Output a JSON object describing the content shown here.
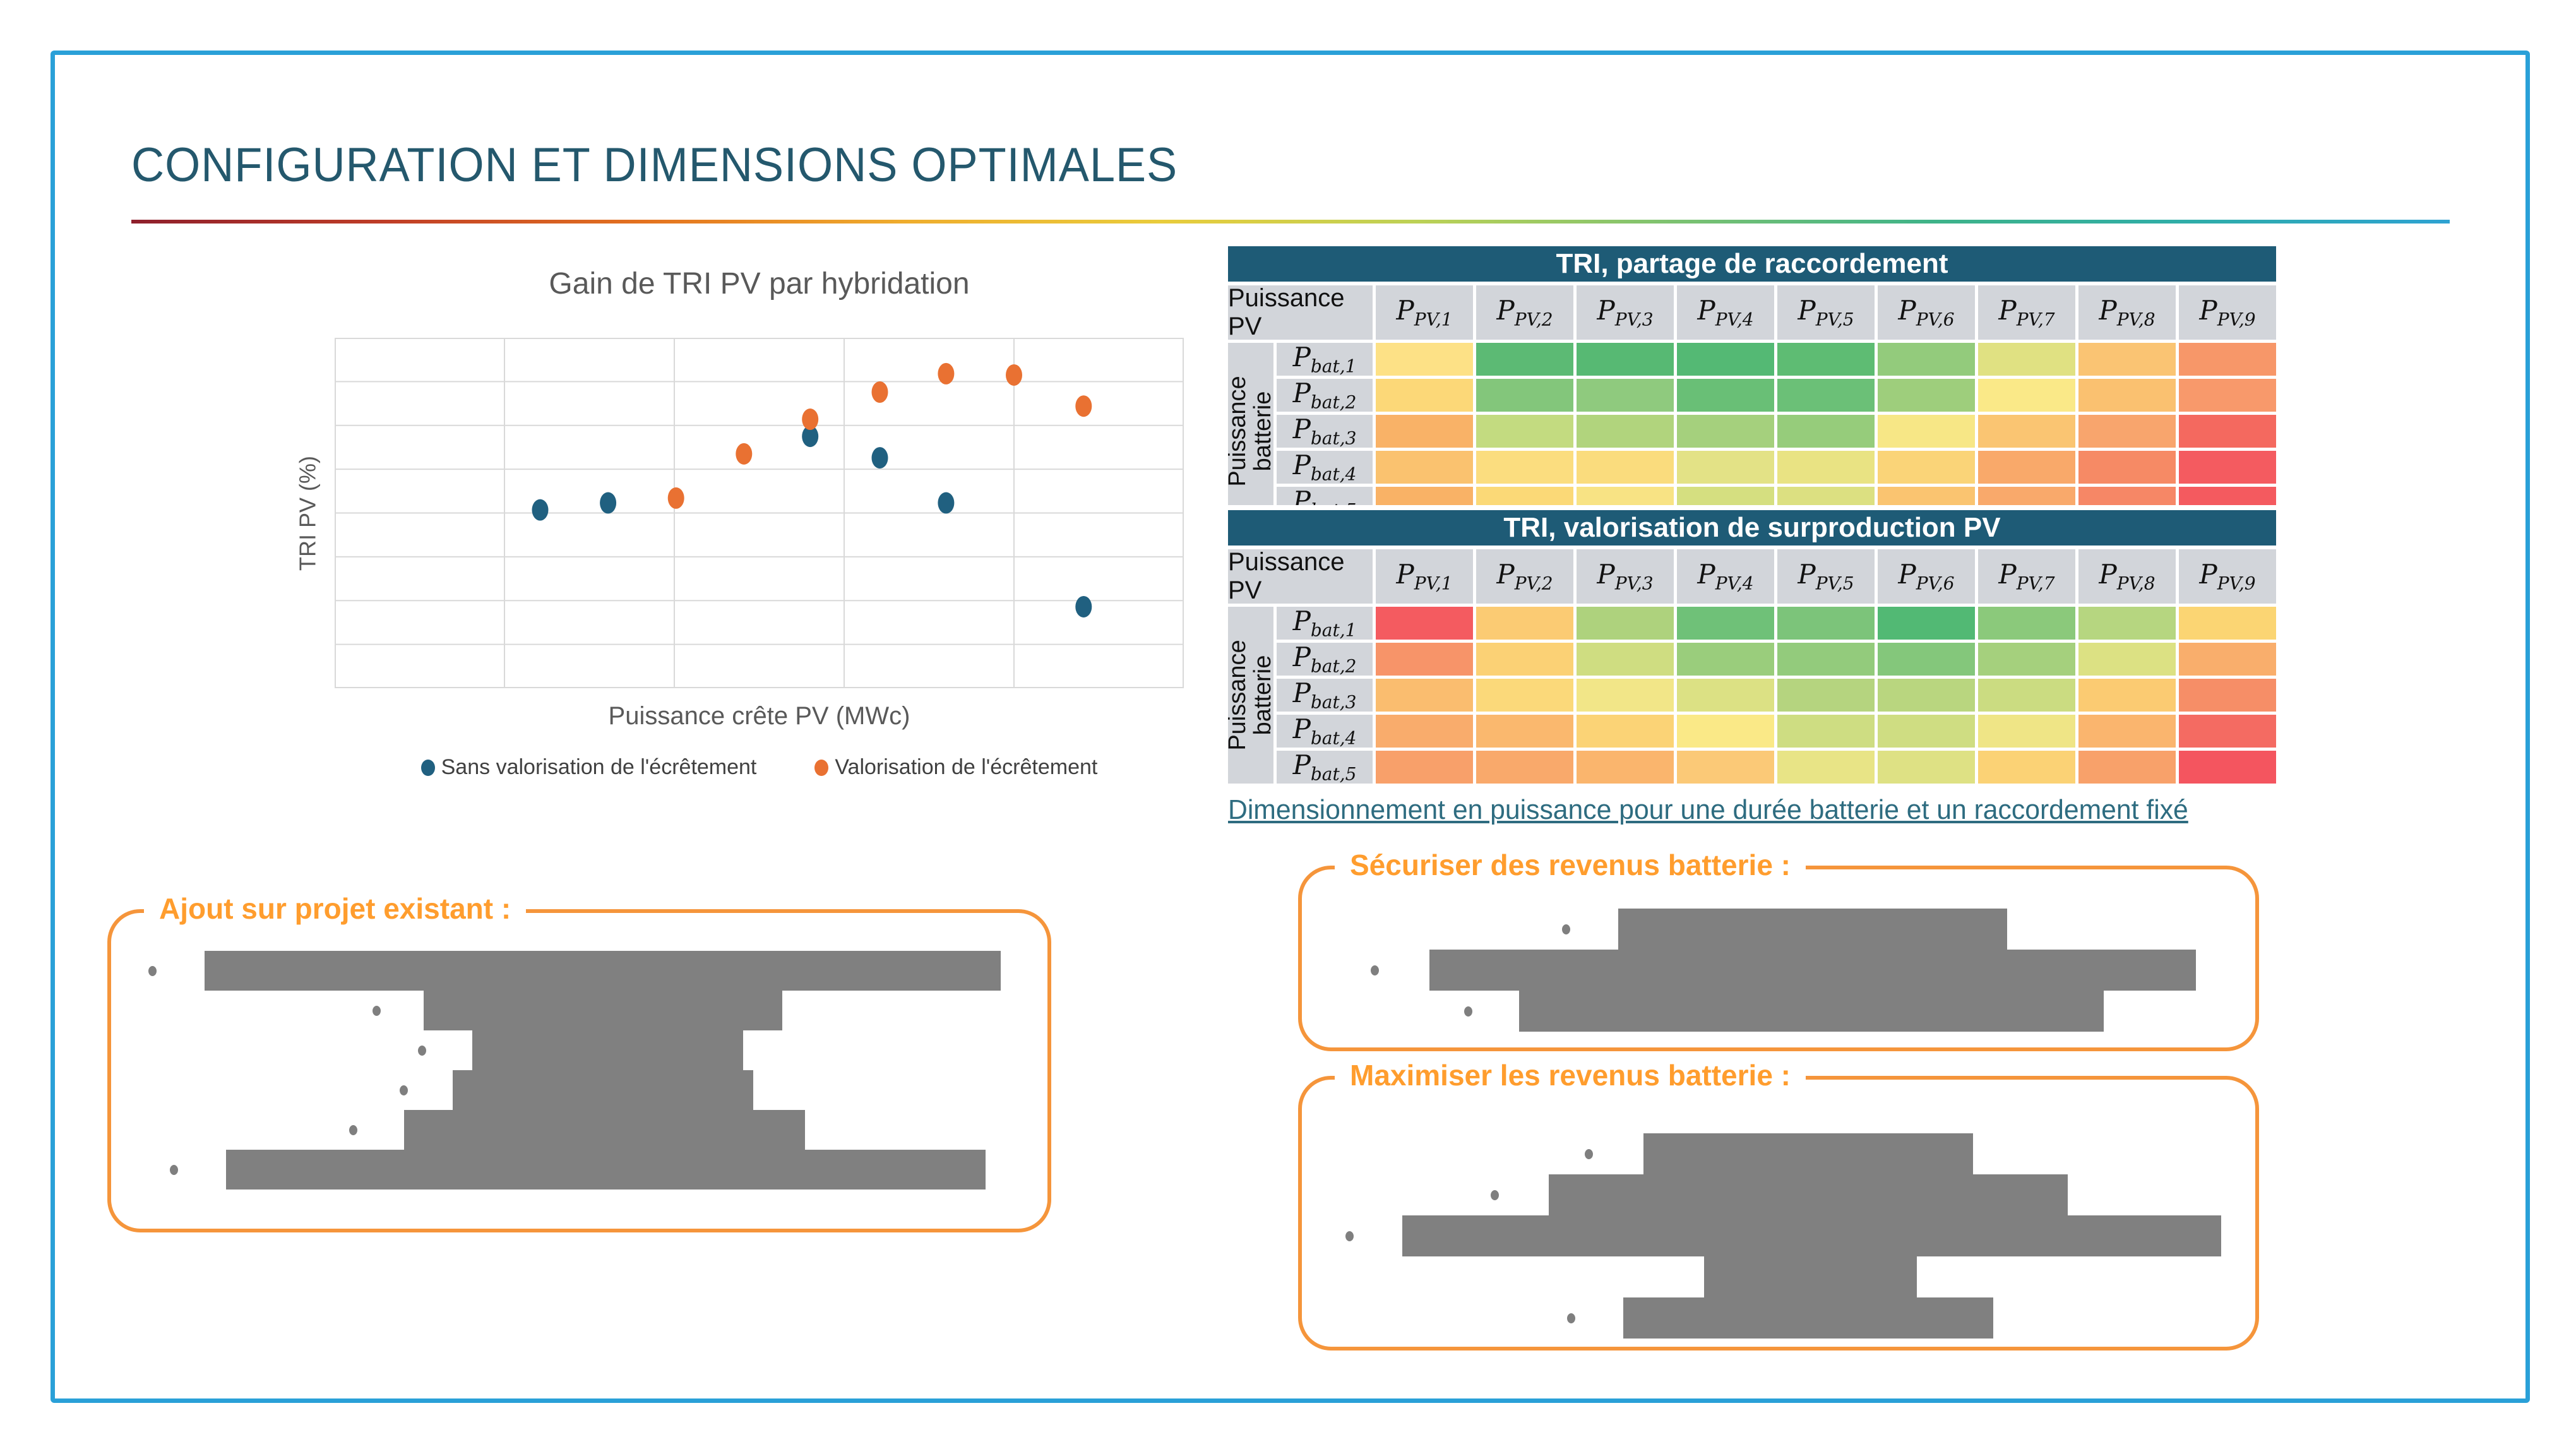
{
  "slide_title": "CONFIGURATION ET DIMENSIONS OPTIMALES",
  "colors": {
    "frame": "#2AA0D8",
    "title_text": "#24586D",
    "accent_gradient": [
      "#8E1F2C",
      "#C03E27",
      "#E4731F",
      "#EFAD2E",
      "#E9CC3C",
      "#BCD156",
      "#7CC271",
      "#3EB389",
      "#2FADA9",
      "#2EA2D2"
    ],
    "table_header_bg": "#1E5B76",
    "table_header_text": "#FFFFFF",
    "axis_header_bg": "#D2D5DA",
    "scatter_blue": "#206080",
    "scatter_orange": "#E97132",
    "chart_text": "#595959",
    "legend_text": "#404040",
    "gridline": "#D9D9D9",
    "callout_border": "#F5953B",
    "callout_title": "#FF9D2E",
    "redacted_gray": "#808080",
    "link_text": "#2E6C80"
  },
  "chart": {
    "title": "Gain de TRI PV par hybridation",
    "ylabel": "TRI PV (%)",
    "xlabel": "Puissance crête PV (MWc)",
    "legend": [
      {
        "label": "Sans valorisation de l'écrêtement",
        "color": "#206080"
      },
      {
        "label": "Valorisation de l'écrêtement",
        "color": "#E97132"
      }
    ]
  },
  "chart_data": {
    "type": "scatter",
    "title": "Gain de TRI PV par hybridation",
    "xlabel": "Puissance crête PV (MWc)",
    "ylabel": "TRI PV (%)",
    "axis_tick_labels_visible": false,
    "x_gridline_divisions": 5,
    "y_gridline_divisions": 8,
    "xlim": [
      0,
      5
    ],
    "ylim": [
      0,
      8
    ],
    "note": "No numeric tick labels are shown on either axis; point coordinates are estimated in gridline units (x out of 5 divisions, y out of 8 divisions from bottom).",
    "series": [
      {
        "name": "Sans valorisation de l'écrêtement",
        "color": "#206080",
        "points": [
          [
            1.21,
            4.07
          ],
          [
            1.61,
            4.23
          ],
          [
            2.8,
            5.75
          ],
          [
            3.21,
            5.26
          ],
          [
            3.6,
            4.23
          ],
          [
            4.41,
            1.86
          ]
        ]
      },
      {
        "name": "Valorisation de l'écrêtement",
        "color": "#E97132",
        "points": [
          [
            2.01,
            4.34
          ],
          [
            2.41,
            5.35
          ],
          [
            2.8,
            6.14
          ],
          [
            3.21,
            6.76
          ],
          [
            3.6,
            7.18
          ],
          [
            4.0,
            7.15
          ],
          [
            4.41,
            6.44
          ]
        ]
      }
    ]
  },
  "tables": [
    {
      "title": "TRI, partage de raccordement",
      "corner_label": "Puissance PV",
      "row_axis_label": "Puissance batterie",
      "col_base": "P",
      "col_subscripts": [
        "PV,1",
        "PV,2",
        "PV,3",
        "PV,4",
        "PV,5",
        "PV,6",
        "PV,7",
        "PV,8",
        "PV,9"
      ],
      "row_base": "P",
      "row_subscripts": [
        "bat,1",
        "bat,2",
        "bat,3",
        "bat,4",
        "bat,5"
      ],
      "clipped_last_row": true,
      "cell_colors": [
        [
          "#FDE186",
          "#5CBA74",
          "#57B973",
          "#54B974",
          "#5EBC73",
          "#93CB7C",
          "#E0E182",
          "#FAC473",
          "#F79769"
        ],
        [
          "#FCD878",
          "#83C67B",
          "#8FCA7E",
          "#69BF76",
          "#6BC077",
          "#9ECE7C",
          "#FAE988",
          "#FAC170",
          "#F8996B"
        ],
        [
          "#F9B267",
          "#C3DB80",
          "#B1D47D",
          "#A5D07D",
          "#96CC7B",
          "#F7E786",
          "#FAC572",
          "#F8A56D",
          "#F4695F"
        ],
        [
          "#FAC26F",
          "#FBDD7F",
          "#FADC7D",
          "#E3E286",
          "#E9E383",
          "#FAD478",
          "#F9A96A",
          "#F68A65",
          "#F45B60"
        ],
        [
          "#F9B266",
          "#FBD977",
          "#F8E384",
          "#D5DF80",
          "#DCE081",
          "#FAC470",
          "#F9A96B",
          "#F68766",
          "#F45A5F"
        ]
      ]
    },
    {
      "title": "TRI, valorisation de surproduction PV",
      "corner_label": "Puissance PV",
      "row_axis_label": "Puissance batterie",
      "col_base": "P",
      "col_subscripts": [
        "PV,1",
        "PV,2",
        "PV,3",
        "PV,4",
        "PV,5",
        "PV,6",
        "PV,7",
        "PV,8",
        "PV,9"
      ],
      "row_base": "P",
      "row_subscripts": [
        "bat,1",
        "bat,2",
        "bat,3",
        "bat,4",
        "bat,5"
      ],
      "clipped_last_row": false,
      "cell_colors": [
        [
          "#F45B60",
          "#FBCB73",
          "#AED27D",
          "#6FC178",
          "#7CC47A",
          "#52B974",
          "#8BC97B",
          "#B6D680",
          "#FBD573"
        ],
        [
          "#F79469",
          "#FBD175",
          "#CFDD81",
          "#9ACD7C",
          "#93CB7C",
          "#84C77B",
          "#A5D07D",
          "#DCE183",
          "#F9AE6C"
        ],
        [
          "#FABD6F",
          "#FBD97A",
          "#F2E688",
          "#DCE184",
          "#B5D47F",
          "#B9D67F",
          "#CBDC81",
          "#FBCB72",
          "#F68E67"
        ],
        [
          "#F9AC6C",
          "#FAB86E",
          "#FBD376",
          "#FAE987",
          "#CEDD82",
          "#CFDD82",
          "#EFE586",
          "#FAB56E",
          "#F46B62"
        ],
        [
          "#F8A06A",
          "#F9A96B",
          "#FAB56D",
          "#FBC977",
          "#E8E486",
          "#DEE184",
          "#FBD275",
          "#F8A16A",
          "#F4555F"
        ]
      ]
    }
  ],
  "link_caption": "Dimensionnement en puissance pour une durée batterie et un raccordement fixé",
  "callouts": [
    {
      "title": "Ajout sur projet existant :",
      "redacted_rows": [
        {
          "bullet": 4.0,
          "bar": [
            10.0,
            95.0
          ]
        },
        {
          "bullet": 27.9,
          "bar": [
            33.4,
            71.7
          ]
        },
        {
          "bullet": 32.8,
          "bar": [
            38.6,
            67.5
          ]
        },
        {
          "bullet": 30.8,
          "bar": [
            36.5,
            68.6
          ]
        },
        {
          "bullet": 25.4,
          "bar": [
            31.3,
            74.1
          ]
        },
        {
          "bullet": 6.3,
          "bar": [
            12.3,
            93.4
          ]
        }
      ]
    },
    {
      "title": "Sécuriser des revenus batterie :",
      "redacted_rows": [
        {
          "bullet": 27.3,
          "bar": [
            33.2,
            74.0
          ]
        },
        {
          "bullet": 7.2,
          "bar": [
            13.4,
            93.8
          ]
        },
        {
          "bullet": 17.0,
          "bar": [
            22.8,
            84.1
          ]
        }
      ]
    },
    {
      "title": "Maximiser les revenus batterie :",
      "redacted_rows": [
        {
          "bullet": 29.7,
          "bar": [
            35.8,
            70.4
          ]
        },
        {
          "bullet": 19.8,
          "bar": [
            25.9,
            80.3
          ]
        },
        {
          "bullet": 4.6,
          "bar": [
            10.5,
            96.4
          ]
        },
        {
          "bullet": null,
          "bar": [
            42.2,
            64.5
          ]
        },
        {
          "bullet": 27.8,
          "bar": [
            33.7,
            72.5
          ]
        }
      ]
    }
  ]
}
